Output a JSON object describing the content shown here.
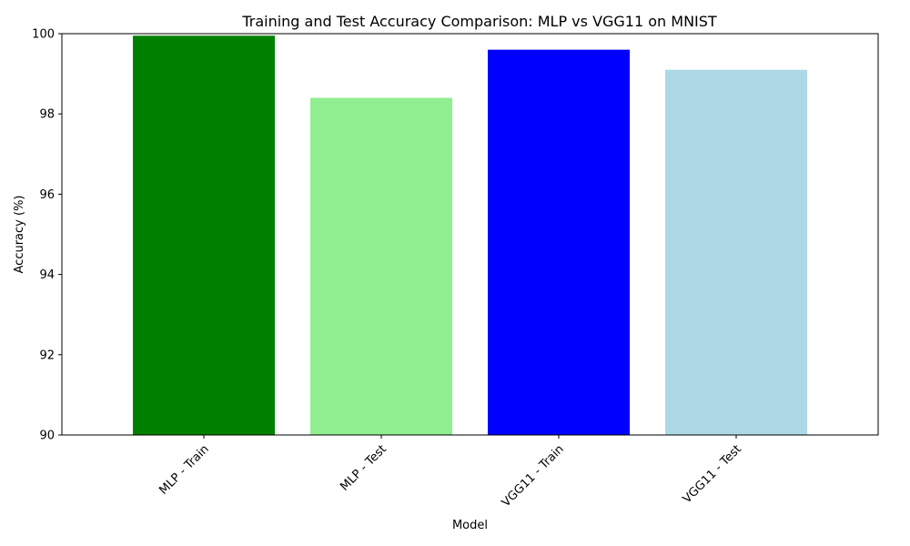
{
  "chart_data": {
    "type": "bar",
    "title": "Training and Test Accuracy Comparison: MLP vs VGG11 on MNIST",
    "xlabel": "Model",
    "ylabel": "Accuracy (%)",
    "categories": [
      "MLP - Train",
      "MLP - Test",
      "VGG11 - Train",
      "VGG11 - Test"
    ],
    "values": [
      99.95,
      98.4,
      99.6,
      99.1
    ],
    "colors": [
      "#008000",
      "#90ee90",
      "#0000ff",
      "#add8e6"
    ],
    "ylim": [
      90,
      100
    ],
    "yticks": [
      90,
      92,
      94,
      96,
      98,
      100
    ],
    "x_tick_rotation": 45,
    "grid": false,
    "legend": "none"
  }
}
